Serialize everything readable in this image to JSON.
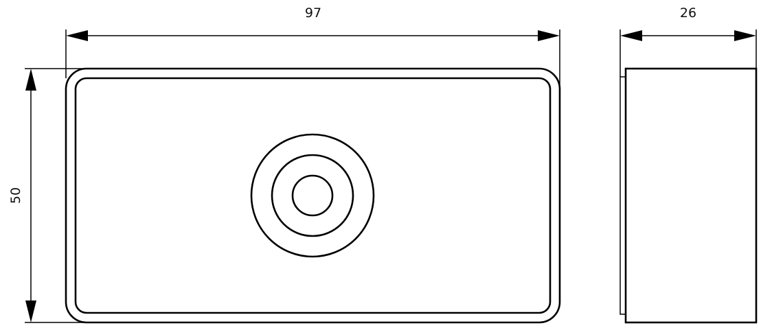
{
  "dimensions": {
    "front_width": "97",
    "front_height": "50",
    "side_depth": "26"
  },
  "colors": {
    "line": "#000000",
    "background": "#ffffff"
  }
}
